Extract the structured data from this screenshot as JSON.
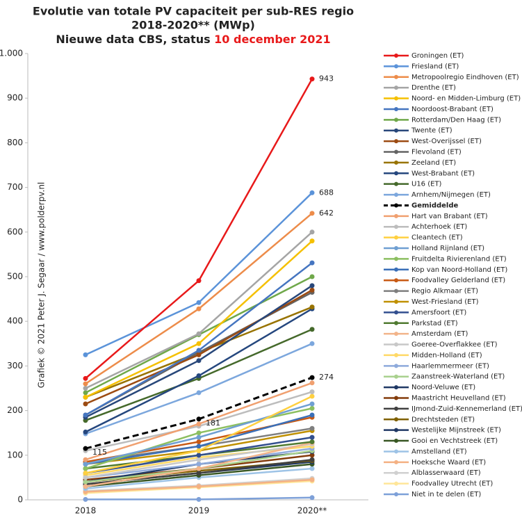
{
  "chart_data": {
    "type": "line",
    "title": [
      "Evolutie van totale PV capaciteit per sub-RES regio",
      "2018-2020** (MWp)",
      "Nieuwe data CBS, status "
    ],
    "title_highlight": "10 december 2021",
    "watermark": "Grafiek © 2021 Peter J. Segaar / www.polderpv.nl",
    "categories": [
      "2018",
      "2019",
      "2020**"
    ],
    "ylim": [
      0,
      1000
    ],
    "yticks": [
      0,
      100,
      200,
      300,
      400,
      500,
      600,
      700,
      800,
      900,
      {
        "value": 1000,
        "label": "1.000"
      }
    ],
    "legend": "right",
    "series": [
      {
        "name": "Groningen (ET)",
        "color": "#e8191a",
        "values": [
          272,
          491,
          943
        ],
        "labeled_points": [
          2
        ]
      },
      {
        "name": "Friesland (ET)",
        "color": "#5b93d9",
        "values": [
          325,
          442,
          688
        ],
        "labeled_points": [
          2
        ]
      },
      {
        "name": "Metropoolregio Eindhoven (ET)",
        "color": "#ed8c4a",
        "values": [
          260,
          428,
          642
        ],
        "labeled_points": [
          2
        ]
      },
      {
        "name": "Drenthe (ET)",
        "color": "#a5a5a5",
        "values": [
          250,
          372,
          600
        ]
      },
      {
        "name": "Noord- en Midden-Limburg (ET)",
        "color": "#f5c000",
        "values": [
          230,
          350,
          580
        ]
      },
      {
        "name": "Noordoost-Brabant (ET)",
        "color": "#4575c0",
        "values": [
          190,
          335,
          531
        ]
      },
      {
        "name": "Rotterdam/Den Haag (ET)",
        "color": "#6fa84a",
        "values": [
          240,
          370,
          500
        ]
      },
      {
        "name": "Twente (ET)",
        "color": "#28477a",
        "values": [
          185,
          312,
          480
        ]
      },
      {
        "name": "West-Overijssel (ET)",
        "color": "#9c4b12",
        "values": [
          215,
          325,
          470
        ]
      },
      {
        "name": "Flevoland (ET)",
        "color": "#646464",
        "values": [
          190,
          330,
          465
        ]
      },
      {
        "name": "Zeeland (ET)",
        "color": "#987300",
        "values": [
          230,
          330,
          432
        ]
      },
      {
        "name": "West-Brabant (ET)",
        "color": "#25477e",
        "values": [
          152,
          278,
          428
        ]
      },
      {
        "name": "U16 (ET)",
        "color": "#45692b",
        "values": [
          178,
          272,
          382
        ]
      },
      {
        "name": "Arnhem/Nijmegen (ET)",
        "color": "#7ca7dd",
        "values": [
          148,
          240,
          350
        ]
      },
      {
        "name": "Gemiddelde",
        "color": "#000000",
        "dashed": true,
        "bold": true,
        "values": [
          115,
          181,
          274
        ],
        "labeled_points": [
          0,
          1,
          2
        ]
      },
      {
        "name": "Hart van Brabant (ET)",
        "color": "#f0a070",
        "values": [
          90,
          170,
          262
        ]
      },
      {
        "name": "Achterhoek (ET)",
        "color": "#bdbdbd",
        "values": [
          110,
          165,
          242
        ]
      },
      {
        "name": "Cleantech (ET)",
        "color": "#ffd040",
        "values": [
          60,
          110,
          232
        ]
      },
      {
        "name": "Holland Rijnland (ET)",
        "color": "#6f9fd2",
        "values": [
          80,
          140,
          215
        ]
      },
      {
        "name": "Fruitdelta Rivierenland (ET)",
        "color": "#8cbf60",
        "values": [
          70,
          150,
          205
        ]
      },
      {
        "name": "Kop van Noord-Holland (ET)",
        "color": "#3a6fb8",
        "values": [
          80,
          120,
          190
        ]
      },
      {
        "name": "Foodvalley Gelderland (ET)",
        "color": "#c85a14",
        "values": [
          85,
          130,
          185
        ]
      },
      {
        "name": "Regio Alkmaar (ET)",
        "color": "#7f7f7f",
        "values": [
          85,
          120,
          160
        ]
      },
      {
        "name": "West-Friesland (ET)",
        "color": "#c09000",
        "values": [
          80,
          110,
          155
        ]
      },
      {
        "name": "Amersfoort (ET)",
        "color": "#324f8f",
        "values": [
          60,
          100,
          140
        ]
      },
      {
        "name": "Parkstad (ET)",
        "color": "#4f7a30",
        "values": [
          70,
          100,
          130
        ]
      },
      {
        "name": "Amsterdam (ET)",
        "color": "#f2b48a",
        "values": [
          30,
          70,
          128
        ]
      },
      {
        "name": "Goeree-Overflakkee (ET)",
        "color": "#c8c8c8",
        "values": [
          50,
          90,
          125
        ]
      },
      {
        "name": "Midden-Holland (ET)",
        "color": "#ffd966",
        "values": [
          55,
          95,
          120
        ]
      },
      {
        "name": "Haarlemmermeer (ET)",
        "color": "#8eaadb",
        "values": [
          50,
          80,
          115
        ]
      },
      {
        "name": "Zaanstreek-Waterland (ET)",
        "color": "#a9d18e",
        "values": [
          40,
          70,
          110
        ]
      },
      {
        "name": "Noord-Veluwe (ET)",
        "color": "#1f3864",
        "values": [
          40,
          80,
          108
        ]
      },
      {
        "name": "Maastricht Heuvelland (ET)",
        "color": "#843c0c",
        "values": [
          45,
          70,
          100
        ]
      },
      {
        "name": "IJmond-Zuid-Kennemerland (ET)",
        "color": "#404040",
        "values": [
          35,
          60,
          90
        ]
      },
      {
        "name": "Drechtsteden (ET)",
        "color": "#7f6000",
        "values": [
          40,
          65,
          88
        ]
      },
      {
        "name": "Westelijke Mijnstreek (ET)",
        "color": "#203864",
        "values": [
          35,
          60,
          85
        ]
      },
      {
        "name": "Gooi en Vechtstreek (ET)",
        "color": "#385723",
        "values": [
          30,
          55,
          80
        ]
      },
      {
        "name": "Amstelland (ET)",
        "color": "#9dc3e6",
        "values": [
          25,
          50,
          70
        ]
      },
      {
        "name": "Hoeksche Waard (ET)",
        "color": "#f4b183",
        "values": [
          18,
          30,
          45
        ]
      },
      {
        "name": "Alblasserwaard (ET)",
        "color": "#d0d0d0",
        "values": [
          20,
          32,
          48
        ]
      },
      {
        "name": "Foodvalley Utrecht (ET)",
        "color": "#ffe699",
        "values": [
          15,
          28,
          42
        ]
      },
      {
        "name": "Niet in te delen (ET)",
        "color": "#7da0d8",
        "values": [
          1,
          1,
          5
        ]
      }
    ]
  }
}
